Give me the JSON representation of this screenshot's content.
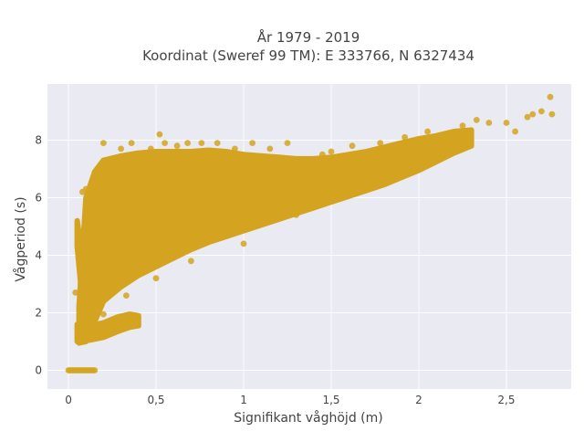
{
  "chart_data": {
    "type": "scatter",
    "title": "År 1979 - 2019",
    "subtitle": "Koordinat (Sweref 99 TM): E 333766, N 6327434",
    "xlabel": "Signifikant våghöjd (m)",
    "ylabel": "Vågperiod (s)",
    "xlim": [
      -0.12,
      2.87
    ],
    "ylim": [
      -0.65,
      9.95
    ],
    "xticks": [
      0,
      0.5,
      1,
      1.5,
      2,
      2.5
    ],
    "xtick_labels": [
      "0",
      "0,5",
      "1",
      "1,5",
      "2",
      "2,5"
    ],
    "yticks": [
      0,
      2,
      4,
      6,
      8
    ],
    "ytick_labels": [
      "0",
      "2",
      "4",
      "6",
      "8"
    ],
    "grid": true,
    "colors": {
      "marker": "#d4a420",
      "plot_bg": "#eaeaf2",
      "grid": "#ffffff",
      "text": "#444444"
    },
    "series": [
      {
        "marker_color": "#d4a420",
        "points": [
          [
            0.06,
            4.2
          ],
          [
            0.15,
            6.5
          ],
          [
            0.1,
            6.3
          ],
          [
            0.08,
            6.2
          ],
          [
            0.04,
            2.7
          ],
          [
            0.2,
            7.9
          ],
          [
            0.3,
            7.7
          ],
          [
            0.36,
            7.9
          ],
          [
            0.4,
            7.5
          ],
          [
            0.47,
            7.7
          ],
          [
            0.52,
            8.2
          ],
          [
            0.55,
            7.9
          ],
          [
            0.62,
            7.8
          ],
          [
            0.68,
            7.9
          ],
          [
            0.76,
            7.9
          ],
          [
            0.85,
            7.9
          ],
          [
            0.95,
            7.7
          ],
          [
            1.05,
            7.9
          ],
          [
            1.15,
            7.7
          ],
          [
            1.25,
            7.9
          ],
          [
            1.5,
            7.6
          ],
          [
            1.62,
            7.8
          ],
          [
            1.78,
            7.9
          ],
          [
            1.92,
            8.1
          ],
          [
            2.05,
            8.3
          ],
          [
            2.25,
            8.5
          ],
          [
            2.33,
            8.7
          ],
          [
            2.4,
            8.6
          ],
          [
            2.5,
            8.6
          ],
          [
            2.55,
            8.3
          ],
          [
            2.62,
            8.8
          ],
          [
            2.65,
            8.9
          ],
          [
            2.7,
            9.0
          ],
          [
            2.75,
            9.5
          ],
          [
            2.76,
            8.9
          ],
          [
            1.45,
            7.5
          ],
          [
            1.3,
            6.9
          ],
          [
            1.5,
            6.6
          ],
          [
            1.6,
            6.3
          ],
          [
            1.3,
            5.4
          ],
          [
            1.0,
            4.4
          ],
          [
            0.7,
            3.8
          ],
          [
            0.5,
            3.2
          ],
          [
            0.33,
            2.6
          ],
          [
            0.2,
            1.95
          ],
          [
            0.38,
            1.85
          ],
          [
            0.35,
            1.8
          ],
          [
            0.4,
            3.4
          ],
          [
            0.08,
            1.3
          ],
          [
            0.12,
            1.2
          ],
          [
            0.07,
            1.6
          ]
        ]
      }
    ],
    "bands": [
      [
        [
          0.06,
          0.95,
          2.2
        ],
        [
          0.1,
          1.0,
          6.0
        ],
        [
          0.15,
          1.7,
          6.9
        ],
        [
          0.2,
          2.4,
          7.3
        ],
        [
          0.3,
          2.9,
          7.45
        ],
        [
          0.4,
          3.3,
          7.55
        ],
        [
          0.5,
          3.6,
          7.6
        ],
        [
          0.6,
          3.9,
          7.6
        ],
        [
          0.7,
          4.2,
          7.6
        ],
        [
          0.8,
          4.45,
          7.65
        ],
        [
          0.9,
          4.65,
          7.6
        ],
        [
          1.0,
          4.85,
          7.5
        ],
        [
          1.1,
          5.05,
          7.45
        ],
        [
          1.2,
          5.25,
          7.4
        ],
        [
          1.3,
          5.45,
          7.35
        ],
        [
          1.4,
          5.65,
          7.35
        ],
        [
          1.5,
          5.85,
          7.4
        ],
        [
          1.6,
          6.05,
          7.5
        ],
        [
          1.7,
          6.25,
          7.6
        ],
        [
          1.8,
          6.45,
          7.75
        ],
        [
          1.9,
          6.7,
          7.9
        ],
        [
          2.0,
          6.95,
          8.05
        ],
        [
          2.1,
          7.25,
          8.15
        ],
        [
          2.2,
          7.55,
          8.3
        ],
        [
          2.3,
          7.8,
          8.35
        ]
      ],
      [
        [
          0.05,
          4.3,
          5.2
        ],
        [
          0.07,
          3.0,
          4.3
        ],
        [
          0.08,
          2.0,
          3.0
        ],
        [
          0.1,
          1.5,
          2.0
        ],
        [
          0.12,
          1.2,
          1.6
        ],
        [
          0.15,
          1.1,
          1.3
        ]
      ],
      [
        [
          0.05,
          1.0,
          1.6
        ],
        [
          0.12,
          1.05,
          1.55
        ],
        [
          0.2,
          1.15,
          1.65
        ],
        [
          0.28,
          1.35,
          1.85
        ],
        [
          0.35,
          1.5,
          1.95
        ],
        [
          0.4,
          1.55,
          1.9
        ]
      ]
    ],
    "zero_points": {
      "y": 0,
      "x_from": 0,
      "x_to": 0.15
    }
  }
}
